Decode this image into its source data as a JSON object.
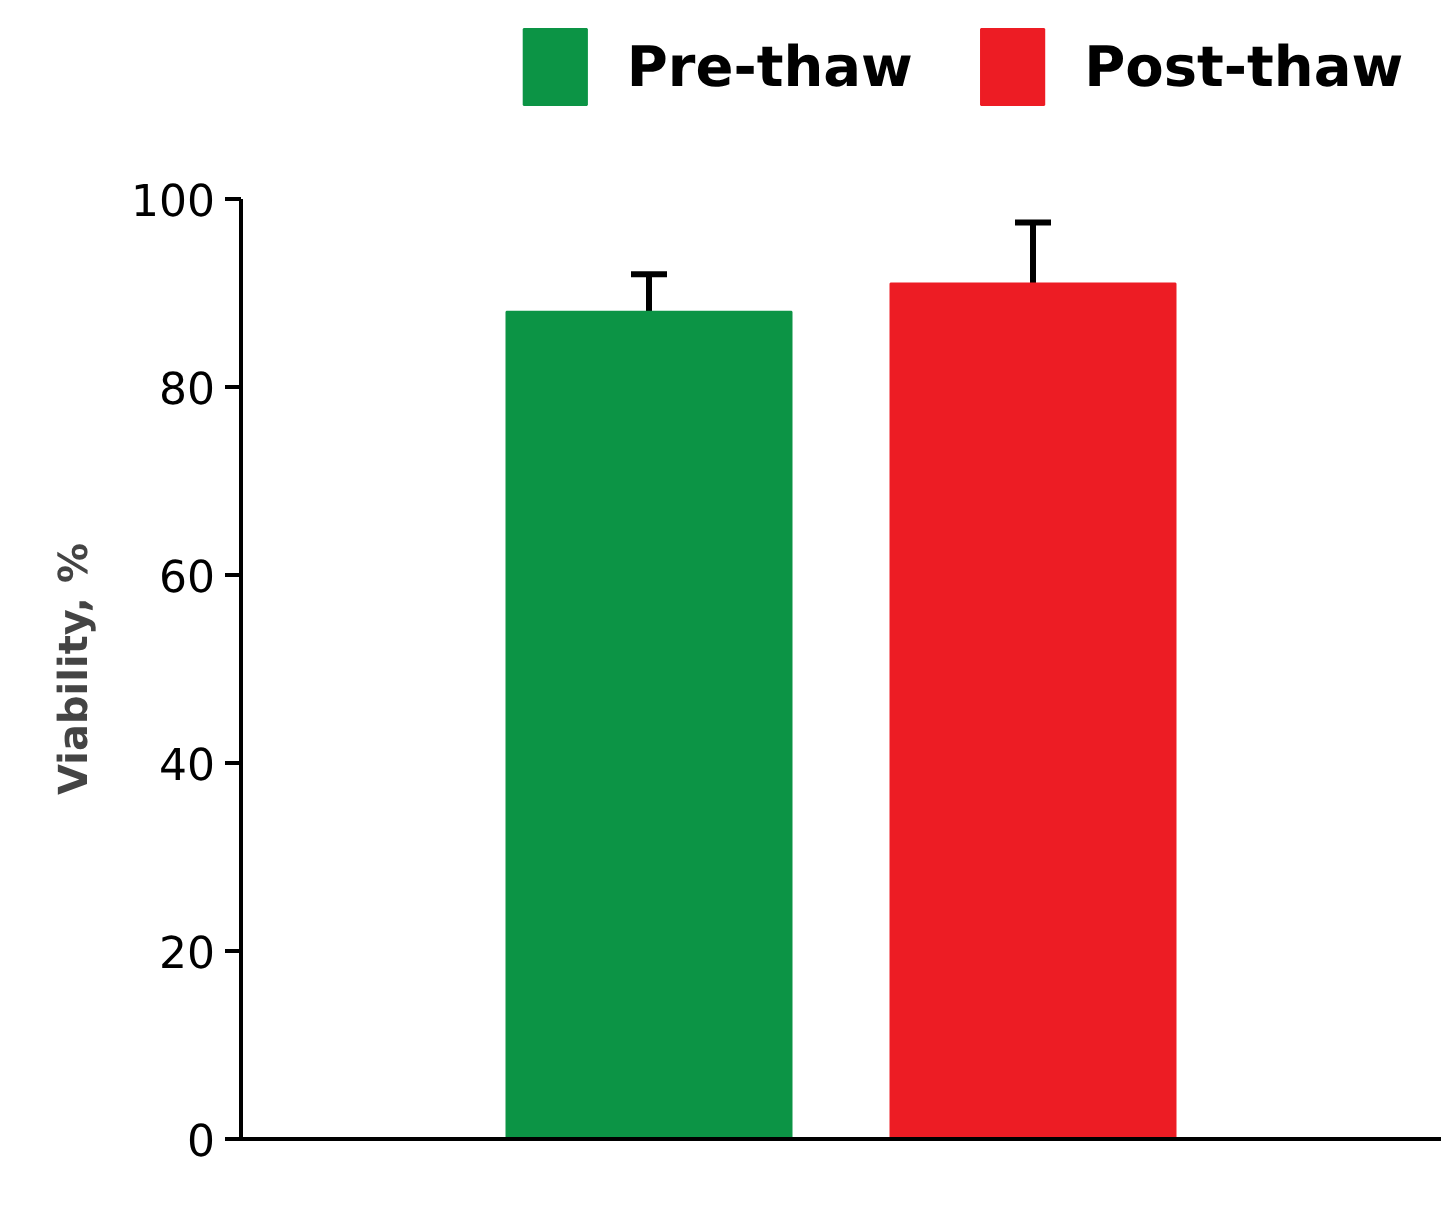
{
  "chart_data": {
    "type": "bar",
    "ylabel": "Viability, %",
    "categories": [
      null
    ],
    "series": [
      {
        "name": "Pre-thaw",
        "color": "#0c9445",
        "values": [
          88
        ],
        "errors": [
          [
            88,
            92
          ]
        ]
      },
      {
        "name": "Post-thaw",
        "color": "#ed1c24",
        "values": [
          91
        ],
        "errors": [
          [
            91,
            97.5
          ]
        ]
      }
    ],
    "ylim": [
      0,
      100
    ],
    "yticks": [
      0,
      20,
      40,
      60,
      80,
      100
    ],
    "grid": false,
    "legend": "top",
    "tick_labels": "y"
  }
}
